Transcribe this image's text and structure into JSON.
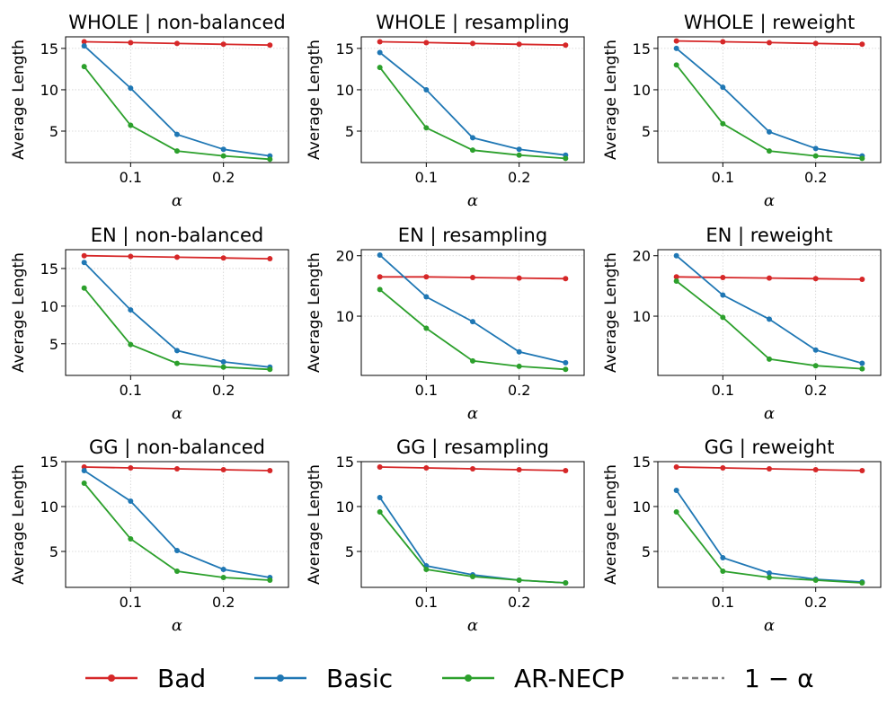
{
  "legend": {
    "items": [
      {
        "label": "Bad",
        "color": "#d62728",
        "style": "solid-marker"
      },
      {
        "label": "Basic",
        "color": "#1f77b4",
        "style": "solid-marker"
      },
      {
        "label": "AR-NECP",
        "color": "#2ca02c",
        "style": "solid-marker"
      },
      {
        "label": "1 − α",
        "color": "#7f7f7f",
        "style": "dashed"
      }
    ]
  },
  "chart_data": [
    {
      "type": "line",
      "title": "WHOLE | non-balanced",
      "xlabel": "α",
      "ylabel": "Average Length",
      "x": [
        0.05,
        0.1,
        0.15,
        0.2,
        0.25
      ],
      "xlim": [
        0.03,
        0.27
      ],
      "ylim": [
        1.2,
        16.4
      ],
      "xticks": [
        0.1,
        0.2
      ],
      "xtick_labels": [
        "0.1",
        "0.2"
      ],
      "yticks": [
        5,
        10,
        15
      ],
      "ytick_labels": [
        "5",
        "10",
        "15"
      ],
      "grid": true,
      "series": [
        {
          "name": "Bad",
          "color": "#d62728",
          "values": [
            15.8,
            15.7,
            15.6,
            15.5,
            15.4
          ]
        },
        {
          "name": "Basic",
          "color": "#1f77b4",
          "values": [
            15.3,
            10.2,
            4.6,
            2.8,
            2.0
          ]
        },
        {
          "name": "AR-NECP",
          "color": "#2ca02c",
          "values": [
            12.8,
            5.7,
            2.6,
            2.0,
            1.6
          ]
        }
      ]
    },
    {
      "type": "line",
      "title": "WHOLE | resampling",
      "xlabel": "α",
      "ylabel": "Average Length",
      "x": [
        0.05,
        0.1,
        0.15,
        0.2,
        0.25
      ],
      "xlim": [
        0.03,
        0.27
      ],
      "ylim": [
        1.2,
        16.4
      ],
      "xticks": [
        0.1,
        0.2
      ],
      "xtick_labels": [
        "0.1",
        "0.2"
      ],
      "yticks": [
        5,
        10,
        15
      ],
      "ytick_labels": [
        "5",
        "10",
        "15"
      ],
      "grid": true,
      "series": [
        {
          "name": "Bad",
          "color": "#d62728",
          "values": [
            15.8,
            15.7,
            15.6,
            15.5,
            15.4
          ]
        },
        {
          "name": "Basic",
          "color": "#1f77b4",
          "values": [
            14.5,
            10.0,
            4.2,
            2.8,
            2.1
          ]
        },
        {
          "name": "AR-NECP",
          "color": "#2ca02c",
          "values": [
            12.7,
            5.4,
            2.7,
            2.1,
            1.7
          ]
        }
      ]
    },
    {
      "type": "line",
      "title": "WHOLE | reweight",
      "xlabel": "α",
      "ylabel": "Average Length",
      "x": [
        0.05,
        0.1,
        0.15,
        0.2,
        0.25
      ],
      "xlim": [
        0.03,
        0.27
      ],
      "ylim": [
        1.2,
        16.4
      ],
      "xticks": [
        0.1,
        0.2
      ],
      "xtick_labels": [
        "0.1",
        "0.2"
      ],
      "yticks": [
        5,
        10,
        15
      ],
      "ytick_labels": [
        "5",
        "10",
        "15"
      ],
      "grid": true,
      "series": [
        {
          "name": "Bad",
          "color": "#d62728",
          "values": [
            15.9,
            15.8,
            15.7,
            15.6,
            15.5
          ]
        },
        {
          "name": "Basic",
          "color": "#1f77b4",
          "values": [
            15.0,
            10.3,
            4.9,
            2.9,
            2.0
          ]
        },
        {
          "name": "AR-NECP",
          "color": "#2ca02c",
          "values": [
            13.0,
            5.9,
            2.6,
            2.0,
            1.7
          ]
        }
      ]
    },
    {
      "type": "line",
      "title": "EN | non-balanced",
      "xlabel": "α",
      "ylabel": "Average Length",
      "x": [
        0.05,
        0.1,
        0.15,
        0.2,
        0.25
      ],
      "xlim": [
        0.03,
        0.27
      ],
      "ylim": [
        0.8,
        17.5
      ],
      "xticks": [
        0.1,
        0.2
      ],
      "xtick_labels": [
        "0.1",
        "0.2"
      ],
      "yticks": [
        5,
        10,
        15
      ],
      "ytick_labels": [
        "5",
        "10",
        "15"
      ],
      "grid": true,
      "series": [
        {
          "name": "Bad",
          "color": "#d62728",
          "values": [
            16.7,
            16.6,
            16.5,
            16.4,
            16.3
          ]
        },
        {
          "name": "Basic",
          "color": "#1f77b4",
          "values": [
            15.8,
            9.5,
            4.1,
            2.6,
            1.9
          ]
        },
        {
          "name": "AR-NECP",
          "color": "#2ca02c",
          "values": [
            12.4,
            4.9,
            2.4,
            1.9,
            1.6
          ]
        }
      ]
    },
    {
      "type": "line",
      "title": "EN | resampling",
      "xlabel": "α",
      "ylabel": "Average Length",
      "x": [
        0.05,
        0.1,
        0.15,
        0.2,
        0.25
      ],
      "xlim": [
        0.03,
        0.27
      ],
      "ylim": [
        0.2,
        21.0
      ],
      "xticks": [
        0.1,
        0.2
      ],
      "xtick_labels": [
        "0.1",
        "0.2"
      ],
      "yticks": [
        10,
        20
      ],
      "ytick_labels": [
        "10",
        "20"
      ],
      "grid": true,
      "series": [
        {
          "name": "Bad",
          "color": "#d62728",
          "values": [
            16.5,
            16.5,
            16.4,
            16.3,
            16.2
          ]
        },
        {
          "name": "Basic",
          "color": "#1f77b4",
          "values": [
            20.1,
            13.2,
            9.1,
            4.1,
            2.3
          ]
        },
        {
          "name": "AR-NECP",
          "color": "#2ca02c",
          "values": [
            14.4,
            8.0,
            2.6,
            1.7,
            1.2
          ]
        }
      ]
    },
    {
      "type": "line",
      "title": "EN | reweight",
      "xlabel": "α",
      "ylabel": "Average Length",
      "x": [
        0.05,
        0.1,
        0.15,
        0.2,
        0.25
      ],
      "xlim": [
        0.03,
        0.27
      ],
      "ylim": [
        0.2,
        21.0
      ],
      "xticks": [
        0.1,
        0.2
      ],
      "xtick_labels": [
        "0.1",
        "0.2"
      ],
      "yticks": [
        10,
        20
      ],
      "ytick_labels": [
        "10",
        "20"
      ],
      "grid": true,
      "series": [
        {
          "name": "Bad",
          "color": "#d62728",
          "values": [
            16.5,
            16.4,
            16.3,
            16.2,
            16.1
          ]
        },
        {
          "name": "Basic",
          "color": "#1f77b4",
          "values": [
            20.0,
            13.5,
            9.5,
            4.4,
            2.2
          ]
        },
        {
          "name": "AR-NECP",
          "color": "#2ca02c",
          "values": [
            15.8,
            9.8,
            2.9,
            1.8,
            1.3
          ]
        }
      ]
    },
    {
      "type": "line",
      "title": "GG | non-balanced",
      "xlabel": "α",
      "ylabel": "Average Length",
      "x": [
        0.05,
        0.1,
        0.15,
        0.2,
        0.25
      ],
      "xlim": [
        0.03,
        0.27
      ],
      "ylim": [
        1.0,
        15.0
      ],
      "xticks": [
        0.1,
        0.2
      ],
      "xtick_labels": [
        "0.1",
        "0.2"
      ],
      "yticks": [
        5,
        10,
        15
      ],
      "ytick_labels": [
        "5",
        "10",
        "15"
      ],
      "grid": true,
      "series": [
        {
          "name": "Bad",
          "color": "#d62728",
          "values": [
            14.4,
            14.3,
            14.2,
            14.1,
            14.0
          ]
        },
        {
          "name": "Basic",
          "color": "#1f77b4",
          "values": [
            14.0,
            10.6,
            5.1,
            3.0,
            2.1
          ]
        },
        {
          "name": "AR-NECP",
          "color": "#2ca02c",
          "values": [
            12.6,
            6.4,
            2.8,
            2.1,
            1.8
          ]
        }
      ]
    },
    {
      "type": "line",
      "title": "GG | resampling",
      "xlabel": "α",
      "ylabel": "Average Length",
      "x": [
        0.05,
        0.1,
        0.15,
        0.2,
        0.25
      ],
      "xlim": [
        0.03,
        0.27
      ],
      "ylim": [
        1.0,
        15.0
      ],
      "xticks": [
        0.1,
        0.2
      ],
      "xtick_labels": [
        "0.1",
        "0.2"
      ],
      "yticks": [
        5,
        10,
        15
      ],
      "ytick_labels": [
        "5",
        "10",
        "15"
      ],
      "grid": true,
      "series": [
        {
          "name": "Bad",
          "color": "#d62728",
          "values": [
            14.4,
            14.3,
            14.2,
            14.1,
            14.0
          ]
        },
        {
          "name": "Basic",
          "color": "#1f77b4",
          "values": [
            11.0,
            3.4,
            2.4,
            1.8,
            1.5
          ]
        },
        {
          "name": "AR-NECP",
          "color": "#2ca02c",
          "values": [
            9.4,
            3.0,
            2.2,
            1.8,
            1.5
          ]
        }
      ]
    },
    {
      "type": "line",
      "title": "GG | reweight",
      "xlabel": "α",
      "ylabel": "Average Length",
      "x": [
        0.05,
        0.1,
        0.15,
        0.2,
        0.25
      ],
      "xlim": [
        0.03,
        0.27
      ],
      "ylim": [
        1.0,
        15.0
      ],
      "xticks": [
        0.1,
        0.2
      ],
      "xtick_labels": [
        "0.1",
        "0.2"
      ],
      "yticks": [
        5,
        10,
        15
      ],
      "ytick_labels": [
        "5",
        "10",
        "15"
      ],
      "grid": true,
      "series": [
        {
          "name": "Bad",
          "color": "#d62728",
          "values": [
            14.4,
            14.3,
            14.2,
            14.1,
            14.0
          ]
        },
        {
          "name": "Basic",
          "color": "#1f77b4",
          "values": [
            11.8,
            4.3,
            2.6,
            1.9,
            1.6
          ]
        },
        {
          "name": "AR-NECP",
          "color": "#2ca02c",
          "values": [
            9.4,
            2.8,
            2.1,
            1.8,
            1.5
          ]
        }
      ]
    }
  ]
}
